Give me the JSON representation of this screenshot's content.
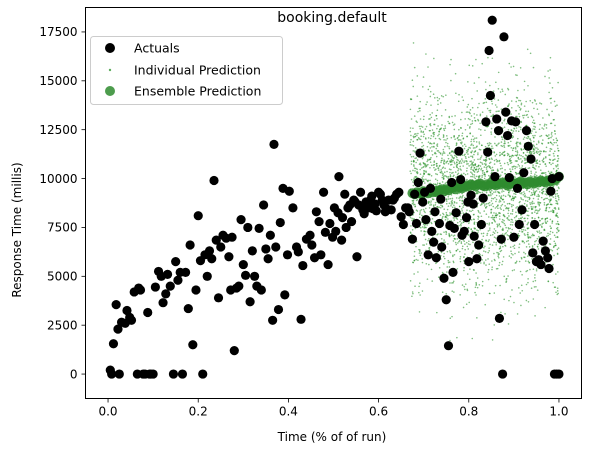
{
  "chart_data": {
    "type": "scatter",
    "title": "booking.default",
    "xlabel": "Time (% of of run)",
    "ylabel": "Response Time (millis)",
    "xlim": [
      -0.05,
      1.05
    ],
    "ylim": [
      -1250,
      18750
    ],
    "x_ticks": [
      "0.0",
      "0.2",
      "0.4",
      "0.6",
      "0.8",
      "1.0"
    ],
    "x_tick_values": [
      0,
      0.2,
      0.4,
      0.6,
      0.8,
      1.0
    ],
    "y_ticks": [
      "0",
      "2500",
      "5000",
      "7500",
      "10000",
      "12500",
      "15000",
      "17500"
    ],
    "y_tick_values": [
      0,
      2500,
      5000,
      7500,
      10000,
      12500,
      15000,
      17500
    ],
    "grid": false,
    "legend": {
      "position": "top-left",
      "entries": [
        {
          "label": "Actuals",
          "color": "#000000",
          "marker": "large-circle"
        },
        {
          "label": "Individual Prediction",
          "color": "#1a8a1a",
          "marker": "small-dot"
        },
        {
          "label": "Ensemble Prediction",
          "color": "#2e8b2e",
          "marker": "large-circle-translucent"
        }
      ]
    },
    "series": [
      {
        "name": "Actuals",
        "color": "#000000",
        "points": [
          [
            0.005,
            200
          ],
          [
            0.008,
            0
          ],
          [
            0.012,
            1550
          ],
          [
            0.018,
            3550
          ],
          [
            0.022,
            2300
          ],
          [
            0.025,
            0
          ],
          [
            0.03,
            2650
          ],
          [
            0.038,
            2600
          ],
          [
            0.042,
            3250
          ],
          [
            0.048,
            2900
          ],
          [
            0.052,
            2750
          ],
          [
            0.058,
            4200
          ],
          [
            0.065,
            0
          ],
          [
            0.068,
            4400
          ],
          [
            0.072,
            4300
          ],
          [
            0.078,
            0
          ],
          [
            0.082,
            0
          ],
          [
            0.088,
            3150
          ],
          [
            0.092,
            0
          ],
          [
            0.095,
            0
          ],
          [
            0.1,
            0
          ],
          [
            0.105,
            4450
          ],
          [
            0.112,
            5250
          ],
          [
            0.118,
            5000
          ],
          [
            0.122,
            3650
          ],
          [
            0.128,
            4100
          ],
          [
            0.132,
            5100
          ],
          [
            0.138,
            4500
          ],
          [
            0.145,
            0
          ],
          [
            0.15,
            5750
          ],
          [
            0.155,
            4800
          ],
          [
            0.16,
            5200
          ],
          [
            0.165,
            0
          ],
          [
            0.172,
            5200
          ],
          [
            0.178,
            3350
          ],
          [
            0.182,
            6600
          ],
          [
            0.188,
            1500
          ],
          [
            0.195,
            4300
          ],
          [
            0.2,
            8100
          ],
          [
            0.205,
            5800
          ],
          [
            0.21,
            0
          ],
          [
            0.215,
            6100
          ],
          [
            0.22,
            5000
          ],
          [
            0.225,
            6300
          ],
          [
            0.23,
            5900
          ],
          [
            0.235,
            9900
          ],
          [
            0.24,
            6850
          ],
          [
            0.245,
            3900
          ],
          [
            0.25,
            6500
          ],
          [
            0.255,
            7100
          ],
          [
            0.262,
            6950
          ],
          [
            0.268,
            6000
          ],
          [
            0.272,
            4300
          ],
          [
            0.275,
            7000
          ],
          [
            0.28,
            1200
          ],
          [
            0.285,
            4400
          ],
          [
            0.29,
            4500
          ],
          [
            0.295,
            7900
          ],
          [
            0.3,
            5600
          ],
          [
            0.305,
            5050
          ],
          [
            0.31,
            7500
          ],
          [
            0.315,
            3700
          ],
          [
            0.32,
            6300
          ],
          [
            0.325,
            5000
          ],
          [
            0.33,
            4500
          ],
          [
            0.335,
            7450
          ],
          [
            0.34,
            4300
          ],
          [
            0.345,
            8650
          ],
          [
            0.35,
            6400
          ],
          [
            0.355,
            5900
          ],
          [
            0.36,
            7100
          ],
          [
            0.365,
            2750
          ],
          [
            0.368,
            11750
          ],
          [
            0.372,
            6500
          ],
          [
            0.378,
            3300
          ],
          [
            0.382,
            7750
          ],
          [
            0.388,
            9500
          ],
          [
            0.392,
            4050
          ],
          [
            0.398,
            6100
          ],
          [
            0.402,
            9350
          ],
          [
            0.41,
            8500
          ],
          [
            0.418,
            6500
          ],
          [
            0.422,
            6250
          ],
          [
            0.428,
            2800
          ],
          [
            0.432,
            5550
          ],
          [
            0.44,
            6900
          ],
          [
            0.448,
            7100
          ],
          [
            0.452,
            6600
          ],
          [
            0.458,
            5950
          ],
          [
            0.462,
            8300
          ],
          [
            0.468,
            7800
          ],
          [
            0.472,
            6100
          ],
          [
            0.478,
            9300
          ],
          [
            0.482,
            7250
          ],
          [
            0.488,
            5600
          ],
          [
            0.492,
            7700
          ],
          [
            0.498,
            7000
          ],
          [
            0.502,
            8500
          ],
          [
            0.505,
            7300
          ],
          [
            0.51,
            8250
          ],
          [
            0.512,
            10100
          ],
          [
            0.518,
            6850
          ],
          [
            0.52,
            8000
          ],
          [
            0.525,
            9200
          ],
          [
            0.528,
            7500
          ],
          [
            0.532,
            8500
          ],
          [
            0.536,
            8650
          ],
          [
            0.54,
            7800
          ],
          [
            0.545,
            8900
          ],
          [
            0.548,
            8800
          ],
          [
            0.552,
            6000
          ],
          [
            0.556,
            8650
          ],
          [
            0.56,
            9300
          ],
          [
            0.565,
            8400
          ],
          [
            0.568,
            8200
          ],
          [
            0.572,
            8800
          ],
          [
            0.578,
            8500
          ],
          [
            0.582,
            8900
          ],
          [
            0.585,
            9100
          ],
          [
            0.588,
            8450
          ],
          [
            0.592,
            8700
          ],
          [
            0.595,
            8350
          ],
          [
            0.6,
            9300
          ],
          [
            0.604,
            9200
          ],
          [
            0.608,
            8900
          ],
          [
            0.612,
            8650
          ],
          [
            0.615,
            8300
          ],
          [
            0.618,
            8450
          ],
          [
            0.622,
            8900
          ],
          [
            0.628,
            8400
          ],
          [
            0.632,
            8900
          ],
          [
            0.635,
            9000
          ],
          [
            0.64,
            9200
          ],
          [
            0.645,
            9300
          ],
          [
            0.65,
            8050
          ],
          [
            0.655,
            7650
          ],
          [
            0.66,
            8500
          ],
          [
            0.665,
            8500
          ],
          [
            0.668,
            8300
          ],
          [
            0.675,
            6900
          ],
          [
            0.68,
            9200
          ],
          [
            0.684,
            7700
          ],
          [
            0.688,
            9800
          ],
          [
            0.692,
            11300
          ],
          [
            0.698,
            8800
          ],
          [
            0.702,
            9300
          ],
          [
            0.705,
            7900
          ],
          [
            0.71,
            6100
          ],
          [
            0.715,
            9500
          ],
          [
            0.718,
            7300
          ],
          [
            0.722,
            6750
          ],
          [
            0.725,
            8300
          ],
          [
            0.728,
            5950
          ],
          [
            0.735,
            7700
          ],
          [
            0.738,
            8950
          ],
          [
            0.74,
            6500
          ],
          [
            0.745,
            4900
          ],
          [
            0.75,
            3800
          ],
          [
            0.755,
            1450
          ],
          [
            0.758,
            7600
          ],
          [
            0.762,
            9800
          ],
          [
            0.765,
            5200
          ],
          [
            0.768,
            7450
          ],
          [
            0.772,
            8250
          ],
          [
            0.778,
            11400
          ],
          [
            0.782,
            9950
          ],
          [
            0.785,
            7100
          ],
          [
            0.79,
            7300
          ],
          [
            0.795,
            8000
          ],
          [
            0.798,
            8800
          ],
          [
            0.8,
            5750
          ],
          [
            0.805,
            9150
          ],
          [
            0.81,
            8700
          ],
          [
            0.812,
            7050
          ],
          [
            0.818,
            5900
          ],
          [
            0.822,
            6600
          ],
          [
            0.828,
            7650
          ],
          [
            0.832,
            9000
          ],
          [
            0.838,
            12900
          ],
          [
            0.842,
            11350
          ],
          [
            0.845,
            16550
          ],
          [
            0.848,
            14250
          ],
          [
            0.852,
            18100
          ],
          [
            0.858,
            10100
          ],
          [
            0.862,
            13050
          ],
          [
            0.866,
            12450
          ],
          [
            0.868,
            2850
          ],
          [
            0.872,
            6900
          ],
          [
            0.875,
            0
          ],
          [
            0.878,
            17250
          ],
          [
            0.882,
            13400
          ],
          [
            0.886,
            12200
          ],
          [
            0.89,
            10050
          ],
          [
            0.895,
            12950
          ],
          [
            0.9,
            7000
          ],
          [
            0.904,
            12900
          ],
          [
            0.908,
            9500
          ],
          [
            0.912,
            7650
          ],
          [
            0.918,
            8400
          ],
          [
            0.922,
            10300
          ],
          [
            0.928,
            12450
          ],
          [
            0.932,
            11650
          ],
          [
            0.938,
            11000
          ],
          [
            0.942,
            6200
          ],
          [
            0.946,
            7650
          ],
          [
            0.95,
            5750
          ],
          [
            0.955,
            5850
          ],
          [
            0.96,
            5600
          ],
          [
            0.965,
            6800
          ],
          [
            0.97,
            6300
          ],
          [
            0.975,
            5950
          ],
          [
            0.978,
            5400
          ],
          [
            0.982,
            9350
          ],
          [
            0.985,
            10000
          ],
          [
            0.99,
            0
          ],
          [
            0.995,
            0
          ],
          [
            1.0,
            0
          ],
          [
            1.0,
            10100
          ]
        ]
      },
      {
        "name": "Individual Prediction",
        "color": "#1a8a1a",
        "x_range": [
          0.67,
          1.0
        ],
        "y_range": [
          0,
          17600
        ],
        "center": 9600,
        "approx_count": 3000
      },
      {
        "name": "Ensemble Prediction",
        "color": "#2e8b2e",
        "points": [
          [
            0.675,
            9250
          ],
          [
            0.68,
            9200
          ],
          [
            0.685,
            9300
          ],
          [
            0.69,
            9250
          ],
          [
            0.695,
            9200
          ],
          [
            0.7,
            9350
          ],
          [
            0.705,
            9300
          ],
          [
            0.71,
            9250
          ],
          [
            0.715,
            9400
          ],
          [
            0.72,
            9300
          ],
          [
            0.725,
            9350
          ],
          [
            0.73,
            9300
          ],
          [
            0.735,
            9400
          ],
          [
            0.74,
            9450
          ],
          [
            0.745,
            9350
          ],
          [
            0.75,
            9450
          ],
          [
            0.755,
            9400
          ],
          [
            0.76,
            9500
          ],
          [
            0.765,
            9550
          ],
          [
            0.77,
            9450
          ],
          [
            0.775,
            9600
          ],
          [
            0.78,
            9550
          ],
          [
            0.785,
            9500
          ],
          [
            0.79,
            9600
          ],
          [
            0.795,
            9650
          ],
          [
            0.8,
            9600
          ],
          [
            0.805,
            9700
          ],
          [
            0.81,
            9650
          ],
          [
            0.815,
            9600
          ],
          [
            0.82,
            9700
          ],
          [
            0.825,
            9750
          ],
          [
            0.83,
            9650
          ],
          [
            0.835,
            9600
          ],
          [
            0.84,
            9700
          ],
          [
            0.845,
            9650
          ],
          [
            0.85,
            9800
          ],
          [
            0.855,
            9700
          ],
          [
            0.86,
            9650
          ],
          [
            0.865,
            9750
          ],
          [
            0.87,
            9700
          ],
          [
            0.875,
            9800
          ],
          [
            0.88,
            9750
          ],
          [
            0.885,
            9650
          ],
          [
            0.89,
            9700
          ],
          [
            0.895,
            9800
          ],
          [
            0.9,
            9750
          ],
          [
            0.905,
            9700
          ],
          [
            0.91,
            9800
          ],
          [
            0.915,
            9850
          ],
          [
            0.92,
            9750
          ],
          [
            0.925,
            9800
          ],
          [
            0.93,
            9700
          ],
          [
            0.935,
            9850
          ],
          [
            0.94,
            9800
          ],
          [
            0.945,
            9750
          ],
          [
            0.95,
            9850
          ],
          [
            0.955,
            9800
          ],
          [
            0.96,
            9900
          ],
          [
            0.965,
            9850
          ],
          [
            0.97,
            9800
          ],
          [
            0.975,
            9900
          ],
          [
            0.98,
            9850
          ],
          [
            0.985,
            9950
          ],
          [
            0.99,
            9900
          ],
          [
            0.995,
            10000
          ],
          [
            1.0,
            10100
          ]
        ]
      }
    ]
  }
}
